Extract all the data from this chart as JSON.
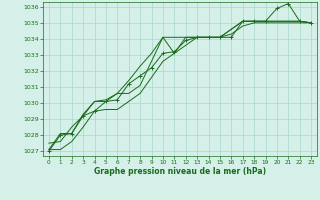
{
  "title": "Graphe pression niveau de la mer (hPa)",
  "bg_color": "#d4f0e8",
  "grid_color": "#a8d8cc",
  "line_color": "#1a6b1a",
  "xlim": [
    -0.5,
    23.5
  ],
  "ylim": [
    1026.7,
    1036.3
  ],
  "yticks": [
    1027,
    1028,
    1029,
    1030,
    1031,
    1032,
    1033,
    1034,
    1035,
    1036
  ],
  "xticks": [
    0,
    1,
    2,
    3,
    4,
    5,
    6,
    7,
    8,
    9,
    10,
    11,
    12,
    13,
    14,
    15,
    16,
    17,
    18,
    19,
    20,
    21,
    22,
    23
  ],
  "series": [
    [
      1027.0,
      1028.0,
      1028.1,
      1029.2,
      1029.5,
      1030.1,
      1030.2,
      1031.2,
      1031.7,
      1032.2,
      1033.1,
      1033.2,
      1033.9,
      1034.1,
      1034.1,
      1034.1,
      1034.1,
      1035.1,
      1035.1,
      1035.1,
      1035.9,
      1036.2,
      1035.1,
      1035.0
    ],
    [
      1027.5,
      1027.6,
      1028.5,
      1029.2,
      1030.1,
      1030.2,
      1030.6,
      1031.4,
      1032.3,
      1033.1,
      1034.1,
      1033.1,
      1034.1,
      1034.1,
      1034.1,
      1034.1,
      1034.6,
      1035.1,
      1035.1,
      1035.1,
      1035.1,
      1035.1,
      1035.1,
      1035.0
    ],
    [
      1027.1,
      1028.1,
      1028.1,
      1029.3,
      1030.1,
      1030.1,
      1030.6,
      1030.6,
      1031.1,
      1032.6,
      1034.1,
      1034.1,
      1034.1,
      1034.1,
      1034.1,
      1034.1,
      1034.6,
      1035.1,
      1035.1,
      1035.1,
      1035.1,
      1035.1,
      1035.1,
      1035.0
    ],
    [
      1027.1,
      1027.1,
      1027.6,
      1028.5,
      1029.5,
      1029.6,
      1029.6,
      1030.1,
      1030.6,
      1031.6,
      1032.6,
      1033.1,
      1033.6,
      1034.1,
      1034.1,
      1034.1,
      1034.3,
      1034.8,
      1035.0,
      1035.0,
      1035.0,
      1035.0,
      1035.0,
      1035.0
    ]
  ]
}
